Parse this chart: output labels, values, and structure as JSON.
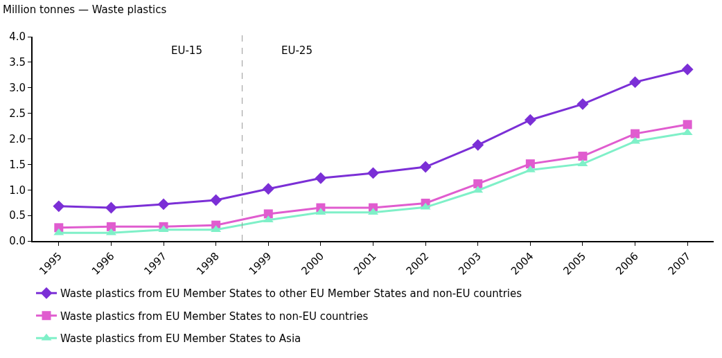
{
  "chart_data": {
    "type": "line",
    "ylabel": "Million tonnes — Waste plastics",
    "x": [
      1995,
      1996,
      1997,
      1998,
      1999,
      2000,
      2001,
      2002,
      2003,
      2004,
      2005,
      2006,
      2007
    ],
    "xlim": [
      1994.5,
      2007.5
    ],
    "xticks": [
      1995,
      1996,
      1997,
      1998,
      1999,
      2000,
      2001,
      2002,
      2003,
      2004,
      2005,
      2006,
      2007
    ],
    "ylim": [
      0,
      4
    ],
    "yticks": [
      {
        "value": 0,
        "label": "0.0"
      },
      {
        "value": 0.5,
        "label": "0.5"
      },
      {
        "value": 1,
        "label": "1.0"
      },
      {
        "value": 1.5,
        "label": "1.5"
      },
      {
        "value": 2,
        "label": "2.0"
      },
      {
        "value": 2.5,
        "label": "2.5"
      },
      {
        "value": 3,
        "label": "3.0"
      },
      {
        "value": 3.5,
        "label": "3.5"
      },
      {
        "value": 4,
        "label": "4.0"
      }
    ],
    "series": [
      {
        "name": "Waste plastics from EU Member States to other EU Member States and non-EU countries",
        "color": "#7b2fd6",
        "marker": "diamond",
        "values": [
          0.68,
          0.65,
          0.72,
          0.8,
          1.02,
          1.23,
          1.33,
          1.45,
          1.88,
          2.37,
          2.68,
          3.11,
          3.36
        ]
      },
      {
        "name": "Waste plastics from EU Member States to non-EU countries",
        "color": "#e05ccf",
        "marker": "square",
        "values": [
          0.26,
          0.28,
          0.28,
          0.31,
          0.53,
          0.65,
          0.65,
          0.74,
          1.12,
          1.51,
          1.66,
          2.1,
          2.28
        ]
      },
      {
        "name": "Waste plastics from EU Member States to Asia",
        "color": "#7ff0c8",
        "marker": "triangle",
        "values": [
          0.16,
          0.16,
          0.22,
          0.22,
          0.41,
          0.56,
          0.56,
          0.66,
          0.99,
          1.39,
          1.51,
          1.95,
          2.12
        ]
      }
    ],
    "ref_lines": [
      {
        "axis": "x",
        "value": 1998.5,
        "label": null,
        "color": "#999999",
        "line_style": "dashed"
      }
    ],
    "annotations": [
      "EU-15",
      "EU-25"
    ],
    "legend": "bottom"
  }
}
